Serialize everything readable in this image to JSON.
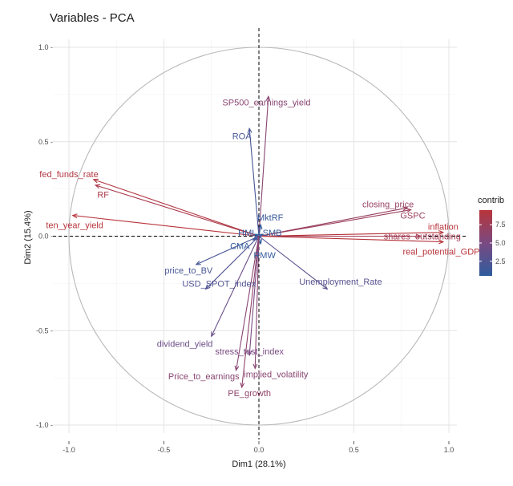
{
  "chart_data": {
    "type": "scatter",
    "subtype": "pca-variable-correlation-circle",
    "title": "Variables - PCA",
    "xlabel": "Dim1 (28.1%)",
    "ylabel": "Dim2 (15.4%)",
    "xlim": [
      -1.0,
      1.0
    ],
    "ylim": [
      -1.0,
      1.0
    ],
    "xticks": [
      -1.0,
      -0.5,
      0.0,
      0.5,
      1.0
    ],
    "yticks": [
      -1.0,
      -0.5,
      0.0,
      0.5,
      1.0
    ],
    "xtick_labels": [
      "-1.0",
      "-0.5",
      "0.0",
      "0.5",
      "1.0"
    ],
    "ytick_labels": [
      "-1.0 -",
      "-0.5 -",
      "0.0 -",
      "0.5 -",
      "1.0 -"
    ],
    "grid": true,
    "legend": {
      "title": "contrib",
      "placement": "right",
      "min": 0.5,
      "max": 9.5,
      "ticks": [
        2.5,
        5.0,
        7.5
      ],
      "tick_labels": [
        "2.5",
        "5.0",
        "7.5"
      ],
      "low_color": "#2e5c9e",
      "high_color": "#b8343b"
    },
    "colors": {
      "circle": "#b8b8b8",
      "grid_major": "#e3e3e3",
      "grid_minor": "#f1f1f1",
      "axis_dash": "#000000"
    },
    "variables": [
      {
        "name": "SP500_earnings_yield",
        "x": 0.05,
        "y": 0.74,
        "contrib": 6.0
      },
      {
        "name": "ROA",
        "x": -0.05,
        "y": 0.57,
        "contrib": 2.0
      },
      {
        "name": "fed_funds_rate",
        "x": -0.87,
        "y": 0.3,
        "contrib": 9.0
      },
      {
        "name": "RF",
        "x": -0.86,
        "y": 0.27,
        "contrib": 8.5
      },
      {
        "name": "ten_year_yield",
        "x": -0.98,
        "y": 0.11,
        "contrib": 9.5
      },
      {
        "name": "closing_price",
        "x": 0.78,
        "y": 0.15,
        "contrib": 7.0
      },
      {
        "name": "GSPC",
        "x": 0.8,
        "y": 0.14,
        "contrib": 7.5
      },
      {
        "name": "inflation",
        "x": 0.97,
        "y": 0.02,
        "contrib": 9.5
      },
      {
        "name": "shares_outstanding",
        "x": 0.85,
        "y": 0.0,
        "contrib": 8.0
      },
      {
        "name": "real_potential_GDP",
        "x": 0.97,
        "y": -0.03,
        "contrib": 9.5
      },
      {
        "name": "MktRF",
        "x": 0.01,
        "y": 0.06,
        "contrib": 1.0
      },
      {
        "name": "HML",
        "x": -0.02,
        "y": 0.01,
        "contrib": 0.8
      },
      {
        "name": "SMB",
        "x": 0.02,
        "y": 0.01,
        "contrib": 0.8
      },
      {
        "name": "CMA",
        "x": -0.03,
        "y": -0.02,
        "contrib": 0.8
      },
      {
        "name": "RMW",
        "x": 0.01,
        "y": -0.04,
        "contrib": 0.8
      },
      {
        "name": "price_to_BV",
        "x": -0.33,
        "y": -0.15,
        "contrib": 2.0
      },
      {
        "name": "USD_SPOT_index",
        "x": -0.28,
        "y": -0.28,
        "contrib": 2.5
      },
      {
        "name": "Unemployment_Rate",
        "x": 0.36,
        "y": -0.28,
        "contrib": 3.0
      },
      {
        "name": "dividend_yield",
        "x": -0.25,
        "y": -0.53,
        "contrib": 4.0
      },
      {
        "name": "stress_test_index",
        "x": -0.05,
        "y": -0.63,
        "contrib": 5.0
      },
      {
        "name": "Price_to_earnings",
        "x": -0.12,
        "y": -0.71,
        "contrib": 6.0
      },
      {
        "name": "implied_volatility",
        "x": -0.02,
        "y": -0.7,
        "contrib": 6.0
      },
      {
        "name": "PE_growth",
        "x": -0.09,
        "y": -0.8,
        "contrib": 6.5
      }
    ],
    "label_positions": {
      "SP500_earnings_yield": [
        0.04,
        0.71
      ],
      "ROA": [
        -0.09,
        0.53
      ],
      "fed_funds_rate": [
        -1.0,
        0.33
      ],
      "RF": [
        -0.82,
        0.22
      ],
      "ten_year_yield": [
        -0.97,
        0.06
      ],
      "closing_price": [
        0.68,
        0.17
      ],
      "GSPC": [
        0.81,
        0.11
      ],
      "inflation": [
        0.97,
        0.05
      ],
      "shares_outstanding": [
        0.86,
        0.0
      ],
      "real_potential_GDP": [
        0.96,
        -0.08
      ],
      "MktRF": [
        0.06,
        0.1
      ],
      "HML": [
        -0.06,
        0.02
      ],
      "SMB": [
        0.07,
        0.02
      ],
      "CMA": [
        -0.1,
        -0.05
      ],
      "RMW": [
        0.03,
        -0.1
      ],
      "price_to_BV": [
        -0.37,
        -0.18
      ],
      "USD_SPOT_index": [
        -0.21,
        -0.25
      ],
      "Unemployment_Rate": [
        0.43,
        -0.24
      ],
      "dividend_yield": [
        -0.39,
        -0.57
      ],
      "stress_test_index": [
        -0.05,
        -0.61
      ],
      "Price_to_earnings": [
        -0.29,
        -0.74
      ],
      "implied_volatility": [
        0.09,
        -0.73
      ],
      "PE_growth": [
        -0.05,
        -0.83
      ]
    }
  }
}
